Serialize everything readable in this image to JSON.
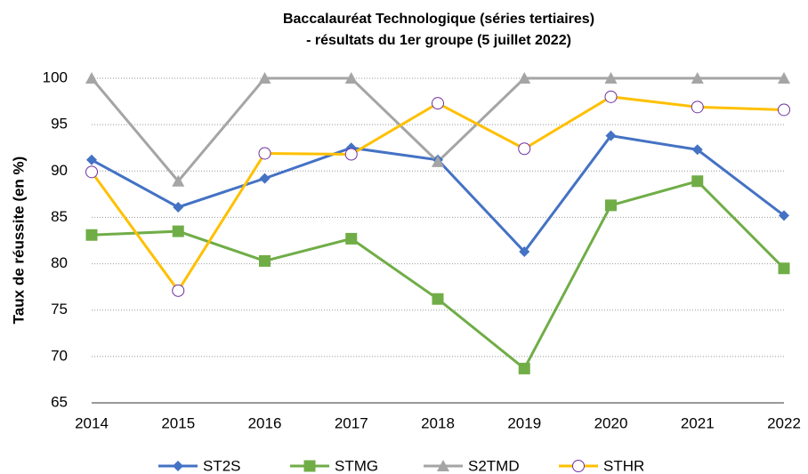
{
  "chart_data": {
    "type": "line",
    "title": [
      "Baccalauréat Technologique (séries tertiaires)",
      "- résultats du 1er groupe (5 juillet 2022)"
    ],
    "y_label": "Taux de réussite (en %)",
    "x": [
      2014,
      2015,
      2016,
      2017,
      2018,
      2019,
      2020,
      2021,
      2022
    ],
    "xlim": [
      2014,
      2022
    ],
    "xticks": [
      2014,
      2015,
      2016,
      2017,
      2018,
      2019,
      2020,
      2021,
      2022
    ],
    "ylim": [
      65,
      100
    ],
    "yticks": [
      65,
      70,
      75,
      80,
      85,
      90,
      95,
      100
    ],
    "grid": true,
    "legend": "bottom",
    "series": [
      {
        "name": "ST2S",
        "color": "#4472c4",
        "marker": "diamond",
        "values": [
          91.2,
          86.1,
          89.2,
          92.5,
          91.2,
          81.3,
          93.8,
          92.3,
          85.2
        ]
      },
      {
        "name": "STMG",
        "color": "#70ad47",
        "marker": "square",
        "values": [
          83.1,
          83.5,
          80.3,
          82.7,
          76.2,
          68.7,
          86.3,
          88.9,
          79.5
        ]
      },
      {
        "name": "S2TMD",
        "color": "#a5a5a5",
        "marker": "triangle",
        "values": [
          100,
          88.9,
          100,
          100,
          91,
          100,
          100,
          100,
          100
        ]
      },
      {
        "name": "STHR",
        "color": "#ffc000",
        "marker": "circle",
        "marker_color": "#7030a0",
        "values": [
          89.9,
          77.1,
          91.9,
          91.8,
          97.3,
          92.4,
          98.0,
          96.9,
          96.6
        ]
      }
    ]
  }
}
